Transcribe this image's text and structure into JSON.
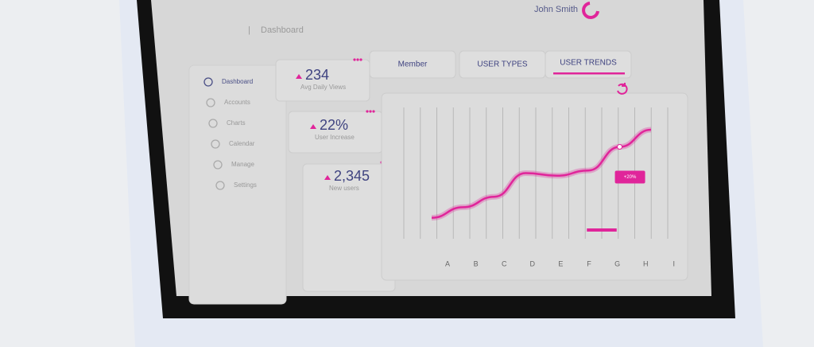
{
  "header": {
    "user": "John Smith",
    "breadcrumb": "Dashboard"
  },
  "sidebar": [
    "Dashboard",
    "Accounts",
    "Charts",
    "Calendar",
    "Manage",
    "Settings"
  ],
  "stats": [
    {
      "value": "234",
      "label": "Avg Daily Views"
    },
    {
      "value": "22%",
      "label": "User Increase"
    },
    {
      "value": "2,345",
      "label": "New users"
    }
  ],
  "tabs": [
    "Member",
    "USER TYPES",
    "USER TRENDS"
  ],
  "chart_data": {
    "type": "line",
    "categories": [
      "A",
      "B",
      "C",
      "D",
      "E",
      "F",
      "G",
      "H",
      "I"
    ],
    "values": [
      16,
      24,
      32,
      50,
      48,
      52,
      70,
      83,
      null
    ],
    "color": "#e0259a",
    "ylim": [
      0,
      100
    ],
    "annotation": "+20%"
  }
}
